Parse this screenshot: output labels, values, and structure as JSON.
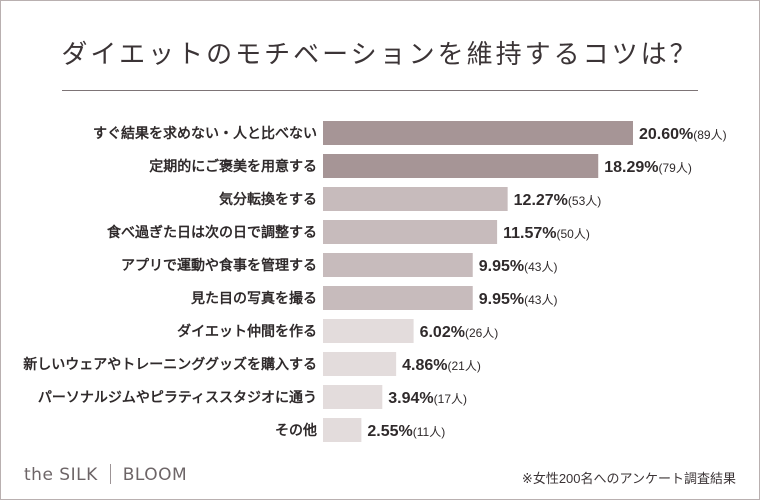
{
  "title": "ダイエットのモチベーションを維持するコツは？",
  "brand": {
    "left": "the SILK",
    "right": "BLOOM"
  },
  "footnote": "※女性200名へのアンケート調査結果",
  "colors": {
    "top": "#a69596",
    "mid": "#c7bbbc",
    "low": "#e3dcdc"
  },
  "chart_data": {
    "type": "bar",
    "orientation": "horizontal",
    "categories": [
      "すぐ結果を求めない・人と比べない",
      "定期的にご褒美を用意する",
      "気分転換をする",
      "食べ過ぎた日は次の日で調整する",
      "アプリで運動や食事を管理する",
      "見た目の写真を撮る",
      "ダイエット仲間を作る",
      "新しいウェアやトレーニンググッズを購入する",
      "パーソナルジムやピラティススタジオに通う",
      "その他"
    ],
    "values": [
      20.6,
      18.29,
      12.27,
      11.57,
      9.95,
      9.95,
      6.02,
      4.86,
      3.94,
      2.55
    ],
    "value_labels": [
      "20.60%",
      "18.29%",
      "12.27%",
      "11.57%",
      "9.95%",
      "9.95%",
      "6.02%",
      "4.86%",
      "3.94%",
      "2.55%"
    ],
    "count_labels": [
      "(89人)",
      "(79人)",
      "(53人)",
      "(50人)",
      "(43人)",
      "(43人)",
      "(26人)",
      "(21人)",
      "(17人)",
      "(11人)"
    ],
    "xlim": [
      0,
      20.6
    ]
  }
}
